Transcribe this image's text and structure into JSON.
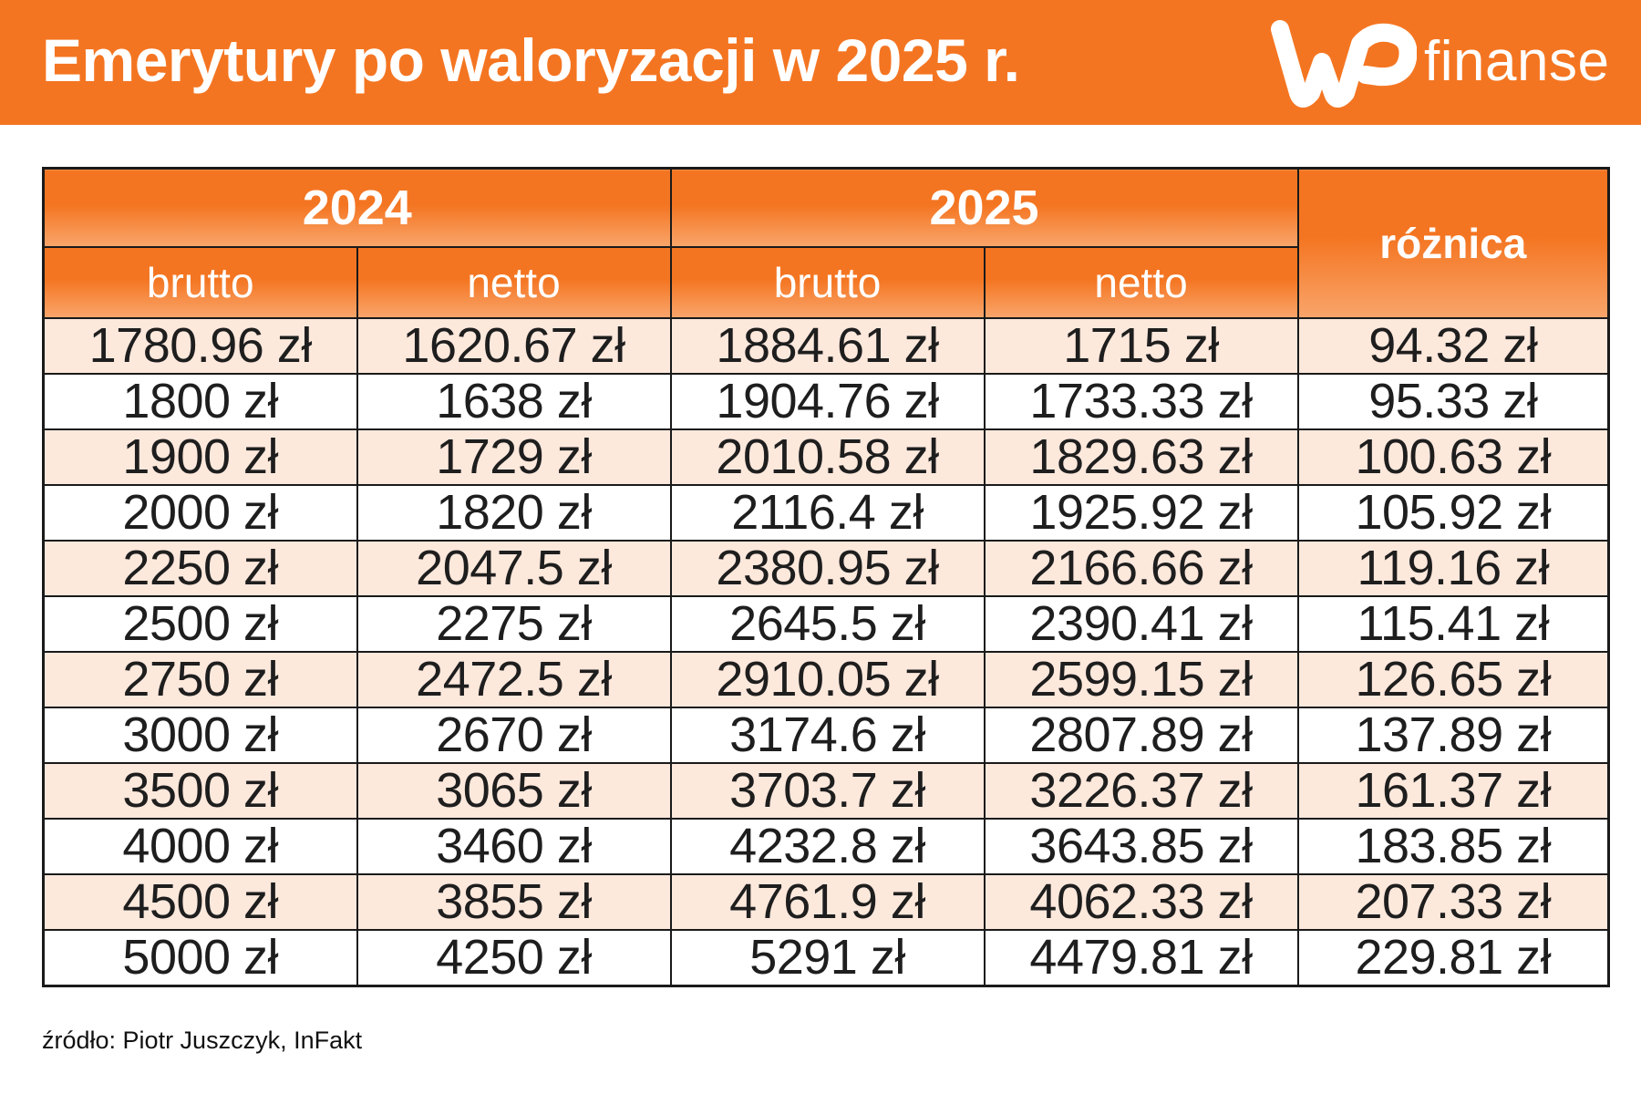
{
  "header": {
    "title": "Emerytury po waloryzacji w 2025 r.",
    "logo_mark": "wp-logo-mark",
    "logo_text": "finanse",
    "color": "#f47521"
  },
  "table": {
    "year_headers": [
      "2024",
      "2025"
    ],
    "diff_header": "różnica",
    "sub_headers": [
      "brutto",
      "netto",
      "brutto",
      "netto"
    ],
    "rows": [
      [
        "1780.96 zł",
        "1620.67 zł",
        "1884.61 zł",
        "1715 zł",
        "94.32 zł"
      ],
      [
        "1800 zł",
        "1638 zł",
        "1904.76 zł",
        "1733.33 zł",
        "95.33 zł"
      ],
      [
        "1900 zł",
        "1729 zł",
        "2010.58 zł",
        "1829.63 zł",
        "100.63 zł"
      ],
      [
        "2000 zł",
        "1820 zł",
        "2116.4 zł",
        "1925.92 zł",
        "105.92 zł"
      ],
      [
        "2250 zł",
        "2047.5 zł",
        "2380.95 zł",
        "2166.66 zł",
        "119.16 zł"
      ],
      [
        "2500 zł",
        "2275 zł",
        "2645.5 zł",
        "2390.41 zł",
        "115.41 zł"
      ],
      [
        "2750 zł",
        "2472.5 zł",
        "2910.05 zł",
        "2599.15 zł",
        "126.65 zł"
      ],
      [
        "3000 zł",
        "2670 zł",
        "3174.6 zł",
        "2807.89 zł",
        "137.89 zł"
      ],
      [
        "3500 zł",
        "3065 zł",
        "3703.7 zł",
        "3226.37 zł",
        "161.37 zł"
      ],
      [
        "4000 zł",
        "3460 zł",
        "4232.8 zł",
        "3643.85 zł",
        "183.85 zł"
      ],
      [
        "4500 zł",
        "3855 zł",
        "4761.9 zł",
        "4062.33 zł",
        "207.33 zł"
      ],
      [
        "5000 zł",
        "4250 zł",
        "5291 zł",
        "4479.81 zł",
        "229.81 zł"
      ]
    ]
  },
  "footer": {
    "source": "źródło: Piotr Juszczyk, InFakt"
  }
}
